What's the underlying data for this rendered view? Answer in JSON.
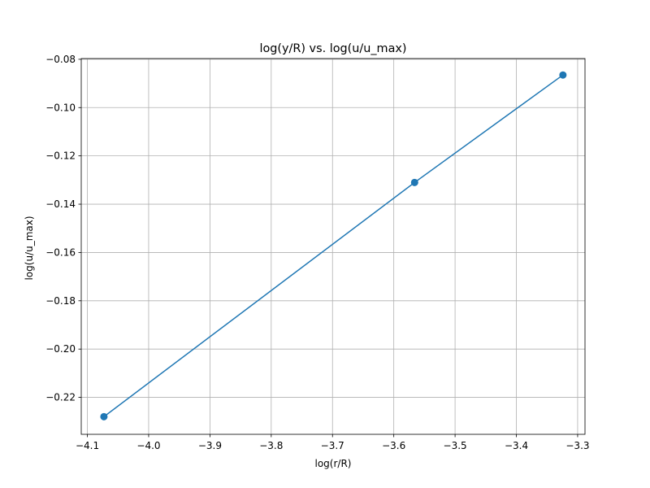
{
  "chart_data": {
    "type": "line",
    "title": "log(y/R) vs. log(u/u_max)",
    "xlabel": "log(r/R)",
    "ylabel": "log(u/u_max)",
    "xlim": [
      -4.11,
      -3.288
    ],
    "ylim": [
      -0.2353,
      -0.0797
    ],
    "xticks": [
      -4.1,
      -4.0,
      -3.9,
      -3.8,
      -3.7,
      -3.6,
      -3.5,
      -3.4,
      -3.3
    ],
    "xtick_labels": [
      "−4.1",
      "−4.0",
      "−3.9",
      "−3.8",
      "−3.7",
      "−3.6",
      "−3.5",
      "−3.4",
      "−3.3"
    ],
    "yticks": [
      -0.22,
      -0.2,
      -0.18,
      -0.16,
      -0.14,
      -0.12,
      -0.1,
      -0.08
    ],
    "ytick_labels": [
      "−0.22",
      "−0.20",
      "−0.18",
      "−0.16",
      "−0.14",
      "−0.12",
      "−0.10",
      "−0.08"
    ],
    "grid": true,
    "series": [
      {
        "x": [
          -4.073,
          -3.566,
          -3.324
        ],
        "y": [
          -0.228,
          -0.131,
          -0.0865
        ],
        "color": "#1f77b4",
        "marker": "circle"
      }
    ]
  }
}
